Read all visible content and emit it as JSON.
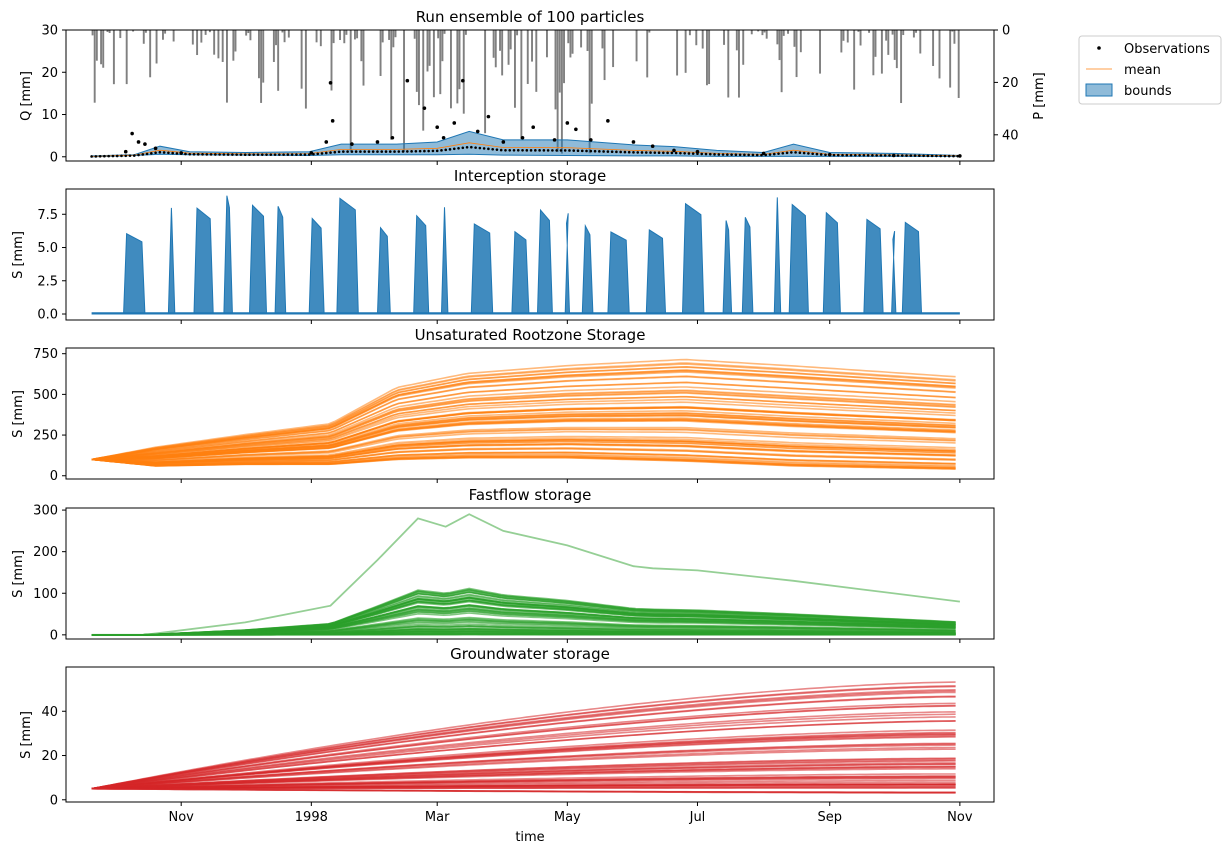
{
  "chart_data": [
    {
      "type": "line",
      "title": "Run ensemble of 100 particles",
      "ylabel": "Q [mm]",
      "ylim": [
        -1,
        30
      ],
      "yticks": [
        0,
        10,
        20,
        30
      ],
      "secondary_axis": {
        "ylabel": "P [mm]",
        "ylim": [
          0,
          50
        ],
        "inverted": true,
        "yticks": [
          0,
          20,
          40
        ]
      },
      "xlim": [
        "1997-09-08",
        "1998-11-17"
      ],
      "legend": {
        "placement": "outside-right",
        "entries": [
          "Observations",
          "mean",
          "bounds"
        ]
      },
      "series_colors": {
        "observations": "#000000",
        "mean": "#ff7f0e",
        "bounds": "#1f77b4",
        "precipitation": "#808080"
      },
      "bounds": {
        "x": [
          "1997-09-20",
          "1997-10-10",
          "1997-10-22",
          "1997-11-05",
          "1997-12-01",
          "1997-12-31",
          "1998-01-15",
          "1998-02-10",
          "1998-03-01",
          "1998-03-16",
          "1998-04-01",
          "1998-05-01",
          "1998-06-01",
          "1998-06-10",
          "1998-06-20",
          "1998-07-10",
          "1998-08-01",
          "1998-08-15",
          "1998-09-01",
          "1998-10-01",
          "1998-11-01"
        ],
        "upper": [
          0.2,
          0.5,
          2.5,
          1.2,
          1.0,
          1.2,
          3.0,
          3.0,
          3.5,
          6.0,
          4.0,
          4.0,
          2.8,
          2.6,
          2.4,
          1.5,
          1.0,
          3.0,
          1.0,
          0.8,
          0.3
        ],
        "lower": [
          0,
          0.3,
          0.6,
          0.5,
          0.4,
          0.3,
          0.5,
          0.5,
          0.5,
          0.6,
          0.4,
          0.3,
          0.2,
          0.2,
          0.2,
          0.1,
          0.1,
          0.1,
          0.1,
          0.1,
          0.1
        ]
      },
      "observations": {
        "x": [
          "1997-10-06",
          "1997-10-09",
          "1997-10-12",
          "1997-10-15",
          "1997-10-20",
          "1997-11-01",
          "1998-01-01",
          "1998-01-08",
          "1998-01-10",
          "1998-01-11",
          "1998-01-20",
          "1998-02-01",
          "1998-02-08",
          "1998-02-15",
          "1998-02-23",
          "1998-03-01",
          "1998-03-04",
          "1998-03-09",
          "1998-03-13",
          "1998-03-20",
          "1998-03-25",
          "1998-04-01",
          "1998-04-10",
          "1998-04-15",
          "1998-04-25",
          "1998-05-01",
          "1998-05-05",
          "1998-05-12",
          "1998-05-20",
          "1998-06-01",
          "1998-06-10",
          "1998-06-20",
          "1998-07-01",
          "1998-08-01",
          "1998-09-01",
          "1998-10-01",
          "1998-11-01"
        ],
        "y": [
          1.2,
          5.5,
          3.5,
          3.0,
          2.0,
          0.9,
          0.9,
          3.5,
          17.5,
          8.5,
          3.0,
          3.5,
          4.5,
          18.0,
          11.5,
          7.0,
          4.5,
          8.0,
          18.0,
          6.0,
          9.5,
          3.5,
          4.5,
          7.0,
          4.0,
          8.0,
          6.5,
          4.0,
          8.5,
          3.5,
          2.5,
          1.5,
          1.2,
          0.8,
          0.5,
          0.3,
          0.2
        ]
      }
    },
    {
      "type": "line",
      "title": "Interception storage",
      "ylabel": "S [mm]",
      "ylim": [
        -0.45,
        9.4
      ],
      "yticks": [
        "0.0",
        "2.5",
        "5.0",
        "7.5"
      ],
      "color": "#1f77b4"
    },
    {
      "type": "line",
      "title": "Unsaturated Rootzone Storage",
      "ylabel": "S [mm]",
      "ylim": [
        -20,
        785
      ],
      "yticks": [
        0,
        250,
        500,
        750
      ],
      "color": "#ff7f0e",
      "x": [
        "1997-09-20",
        "1997-10-20",
        "1997-12-01",
        "1998-01-10",
        "1998-02-10",
        "1998-03-15",
        "1998-05-01",
        "1998-06-25",
        "1998-08-15",
        "1998-11-01"
      ],
      "upper_envelope": [
        100,
        180,
        260,
        330,
        560,
        650,
        700,
        740,
        700,
        630
      ],
      "lower_envelope": [
        100,
        60,
        70,
        70,
        100,
        110,
        110,
        90,
        60,
        40
      ]
    },
    {
      "type": "line",
      "title": "Fastflow storage",
      "ylabel": "S [mm]",
      "ylim": [
        -10,
        305
      ],
      "yticks": [
        0,
        100,
        200,
        300
      ],
      "color": "#2ca02c",
      "highlight_series": {
        "x": [
          "1997-09-20",
          "1997-10-15",
          "1997-12-01",
          "1998-01-10",
          "1998-02-01",
          "1998-02-20",
          "1998-03-05",
          "1998-03-16",
          "1998-04-01",
          "1998-05-01",
          "1998-06-01",
          "1998-06-10",
          "1998-07-01",
          "1998-08-15",
          "1998-09-15",
          "1998-11-01"
        ],
        "y": [
          0,
          0,
          30,
          70,
          180,
          280,
          260,
          290,
          250,
          215,
          165,
          160,
          155,
          130,
          110,
          80
        ]
      }
    },
    {
      "type": "line",
      "title": "Groundwater storage",
      "ylabel": "S [mm]",
      "xlabel": "time",
      "ylim": [
        -1,
        60
      ],
      "yticks": [
        0,
        20,
        40
      ],
      "color": "#d62728",
      "x_tick_labels": [
        "Nov",
        "1998",
        "Mar",
        "May",
        "Jul",
        "Sep",
        "Nov"
      ],
      "x_tick_dates": [
        "1997-11-01",
        "1998-01-01",
        "1998-03-01",
        "1998-05-01",
        "1998-07-01",
        "1998-09-01",
        "1998-11-01"
      ]
    }
  ]
}
